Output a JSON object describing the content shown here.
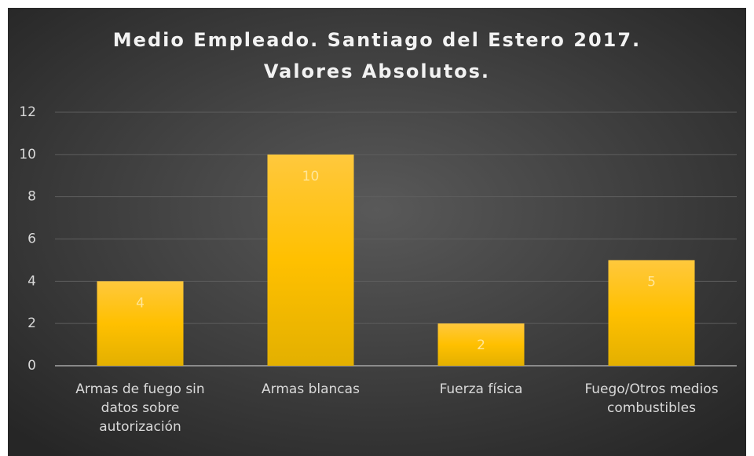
{
  "chart_data": {
    "type": "bar",
    "title": [
      "Medio Empleado. Santiago del Estero 2017.",
      "Valores Absolutos."
    ],
    "categories": [
      "Armas de fuego sin datos sobre autorización",
      "Armas blancas",
      "Fuerza física",
      "Fuego/Otros medios combustibles"
    ],
    "values": [
      4,
      10,
      2,
      5
    ],
    "color": "#ffc000",
    "ylim": [
      0,
      12
    ],
    "yticks": [
      0,
      2,
      4,
      6,
      8,
      10,
      12
    ],
    "grid": true
  }
}
